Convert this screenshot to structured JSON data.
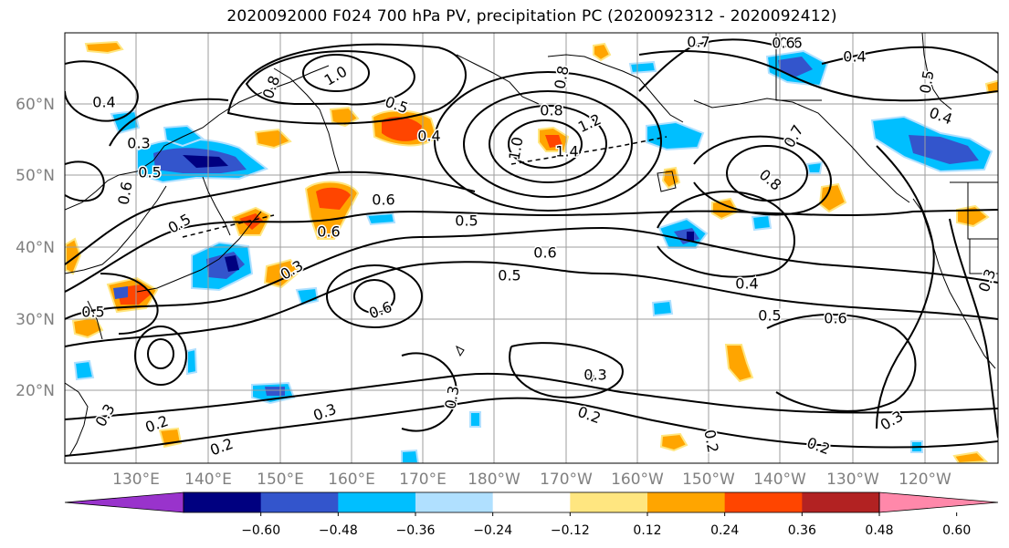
{
  "title": "2020092000 F024 700 hPa PV, precipitation PC (2020092312 - 2020092412)",
  "lat_labels": [
    "60°N",
    "50°N",
    "40°N",
    "30°N",
    "20°N"
  ],
  "lon_labels": [
    "130°E",
    "140°E",
    "150°E",
    "160°E",
    "170°E",
    "180°W",
    "170°W",
    "160°W",
    "150°W",
    "140°W",
    "130°W",
    "120°W"
  ],
  "colorbar": {
    "ticks": [
      "−0.60",
      "−0.48",
      "−0.36",
      "−0.24",
      "−0.12",
      "0.12",
      "0.24",
      "0.36",
      "0.48",
      "0.60"
    ],
    "colors": [
      "#9933cc",
      "#000080",
      "#3355cc",
      "#00bfff",
      "#b0e0ff",
      "#ffffff",
      "#ffe680",
      "#ffa500",
      "#ff4500",
      "#b22222",
      "#ff88aa"
    ]
  },
  "contour_labels": [
    {
      "t": "0.7"
    },
    {
      "t": "0.6"
    },
    {
      "t": "0.4"
    },
    {
      "t": "0.4"
    },
    {
      "t": "1.0"
    },
    {
      "t": "0.8"
    },
    {
      "t": "0.5"
    },
    {
      "t": "0.4"
    },
    {
      "t": "0.8"
    },
    {
      "t": "1.2"
    },
    {
      "t": "1.4"
    },
    {
      "t": "1.0"
    },
    {
      "t": "0.8"
    },
    {
      "t": "0.5"
    },
    {
      "t": "0.4"
    },
    {
      "t": "0.7"
    },
    {
      "t": "0.6"
    },
    {
      "t": "0.6"
    },
    {
      "t": "0.8"
    },
    {
      "t": "0.3"
    },
    {
      "t": "0.5"
    },
    {
      "t": "0.6"
    },
    {
      "t": "0.6"
    },
    {
      "t": "0.5"
    },
    {
      "t": "0.5"
    },
    {
      "t": "0.6"
    },
    {
      "t": "0.4"
    },
    {
      "t": "0.5"
    },
    {
      "t": "0.6"
    },
    {
      "t": "0.3"
    },
    {
      "t": "0.5"
    },
    {
      "t": "0.6"
    },
    {
      "t": "0.5"
    },
    {
      "t": "0.3"
    },
    {
      "t": "0.3"
    },
    {
      "t": "0.3"
    },
    {
      "t": "0.2"
    },
    {
      "t": "0.2"
    },
    {
      "t": "0.2"
    },
    {
      "t": "0.3"
    },
    {
      "t": "0.2"
    },
    {
      "t": "0.3"
    },
    {
      "t": "0.2"
    },
    {
      "t": "0.3"
    }
  ]
}
